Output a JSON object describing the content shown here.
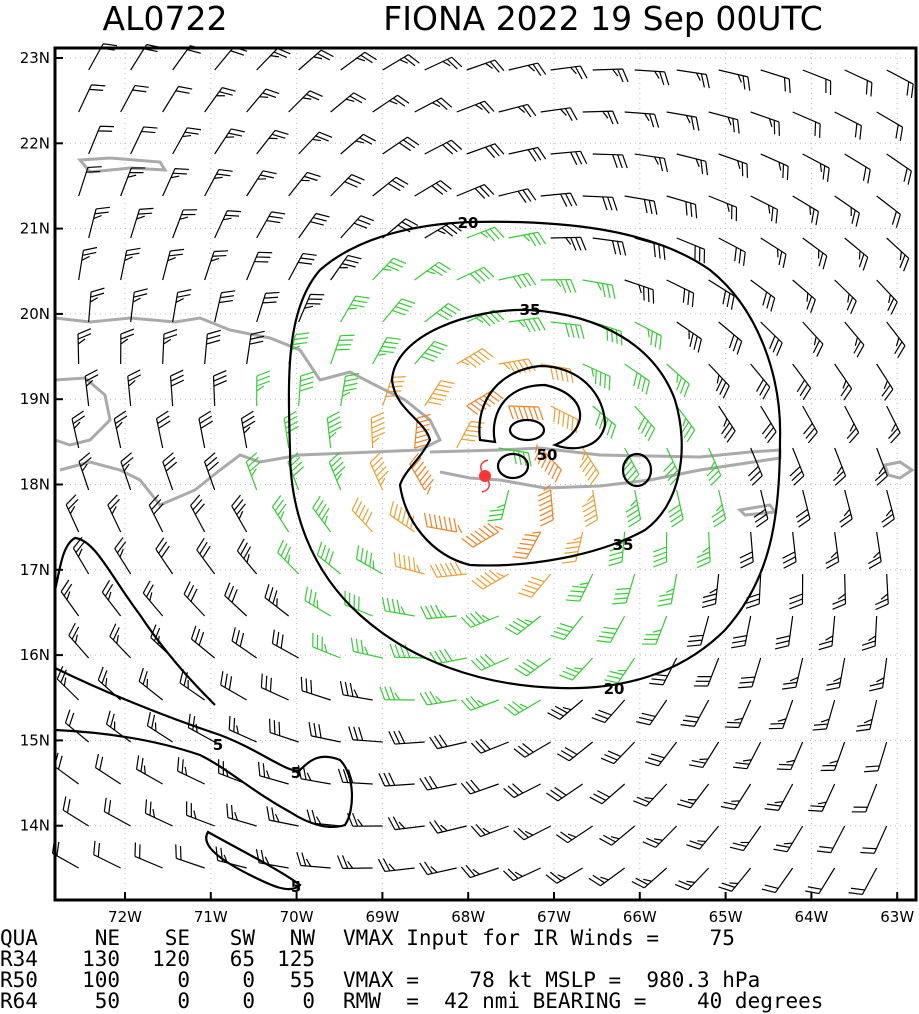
{
  "header": {
    "storm_id": "AL0722",
    "title": "FIONA 2022 19 Sep 00UTC"
  },
  "axes": {
    "lat_labels": [
      "23N",
      "22N",
      "21N",
      "20N",
      "19N",
      "18N",
      "17N",
      "16N",
      "15N",
      "14N"
    ],
    "lon_labels": [
      "72W",
      "71W",
      "70W",
      "69W",
      "68W",
      "67W",
      "66W",
      "65W",
      "64W",
      "63W"
    ]
  },
  "contour_labels": [
    "20",
    "35",
    "50",
    "35",
    "20",
    "5",
    "5",
    "5"
  ],
  "table": {
    "header": [
      "QUA",
      "NE",
      "SE",
      "SW",
      "NW"
    ],
    "rows": [
      [
        "R34",
        "130",
        "120",
        "65",
        "125"
      ],
      [
        "R50",
        "100",
        "0",
        "0",
        "55"
      ],
      [
        "R64",
        "50",
        "0",
        "0",
        "0"
      ]
    ]
  },
  "info": [
    "VMAX Input for IR Winds =    75",
    "",
    "VMAX =    78 kt MSLP =  980.3 hPa",
    "RMW  =  42 nmi BEARING =    40 degrees"
  ]
}
